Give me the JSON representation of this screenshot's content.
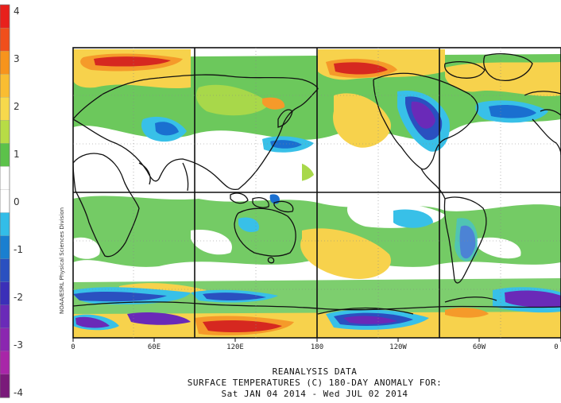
{
  "colorbar": {
    "labels": [
      "4",
      "3",
      "2",
      "1",
      "0",
      "-1",
      "-2",
      "-3",
      "-4"
    ],
    "stops": [
      {
        "value": 4,
        "color": "#e8201c"
      },
      {
        "value": 3.5,
        "color": "#f04f1c"
      },
      {
        "value": 3,
        "color": "#f7941d"
      },
      {
        "value": 2.5,
        "color": "#f9bd32"
      },
      {
        "value": 2,
        "color": "#f7d94c"
      },
      {
        "value": 1.5,
        "color": "#b7dc46"
      },
      {
        "value": 1,
        "color": "#5cc24a"
      },
      {
        "value": 0.5,
        "color": "#ffffff"
      },
      {
        "value": 0,
        "color": "#ffffff"
      },
      {
        "value": -0.5,
        "color": "#33bde8"
      },
      {
        "value": -1,
        "color": "#1a7fd0"
      },
      {
        "value": -1.5,
        "color": "#2a50c0"
      },
      {
        "value": -2,
        "color": "#3b2fb8"
      },
      {
        "value": -2.5,
        "color": "#6a2ab8"
      },
      {
        "value": -3,
        "color": "#8b26b0"
      },
      {
        "value": -3.5,
        "color": "#a826a8"
      },
      {
        "value": -4,
        "color": "#7a1a7a"
      }
    ]
  },
  "map": {
    "x_axis_labels": [
      "0",
      "60E",
      "120E",
      "180",
      "120W",
      "60W",
      "0"
    ],
    "credit": "NOAA/ESRL Physical Sciences Division",
    "colors": {
      "warm_red": "#d62820",
      "orange": "#f59a2a",
      "yellow": "#f7d24c",
      "green": "#5cc24a",
      "light_green": "#a8d84a",
      "cyan": "#38c0e8",
      "blue": "#1a6fd0",
      "purple": "#6a2ab8"
    }
  },
  "caption": {
    "line1": "REANALYSIS DATA",
    "line2": "SURFACE TEMPERATURES (C)   180-DAY ANOMALY FOR:",
    "line3": "Sat JAN 04 2014 - Wed JUL 02 2014"
  }
}
